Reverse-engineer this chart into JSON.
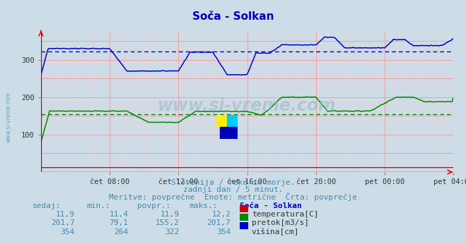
{
  "title": "Soča - Solkan",
  "background_color": "#ccdde8",
  "plot_bg_color": "#ccdde8",
  "grid_color_major": "#ff9999",
  "grid_color_minor": "#ffcccc",
  "xlabel_ticks": [
    "čet 08:00",
    "čet 12:00",
    "čet 16:00",
    "čet 20:00",
    "pet 00:00",
    "pet 04:00"
  ],
  "ylabel_ticks": [
    100,
    200,
    300
  ],
  "ylim": [
    0,
    375
  ],
  "xlim": [
    0,
    288
  ],
  "tick_positions": [
    48,
    96,
    144,
    192,
    240,
    288
  ],
  "subtitle1": "Slovenija / reke in morje.",
  "subtitle2": "zadnji dan / 5 minut.",
  "subtitle3": "Meritve: povprečne  Enote: metrične  Črta: povprečje",
  "table_header": [
    "sedaj:",
    "min.:",
    "povpr.:",
    "maks.:",
    "Soča - Solkan"
  ],
  "table_rows": [
    [
      "11,9",
      "11,4",
      "11,9",
      "12,2",
      "temperatura[C]",
      "#cc0000"
    ],
    [
      "201,7",
      "79,1",
      "155,2",
      "201,7",
      "pretok[m3/s]",
      "#008800"
    ],
    [
      "354",
      "264",
      "322",
      "354",
      "višina[cm]",
      "#0000cc"
    ]
  ],
  "temp_avg": 11.9,
  "flow_avg": 155.2,
  "height_avg": 322,
  "temp_color": "#cc0000",
  "flow_color": "#008800",
  "height_color": "#0000cc",
  "watermark": "www.si-vreme.com",
  "title_color": "#0000bb",
  "text_color": "#4488aa"
}
